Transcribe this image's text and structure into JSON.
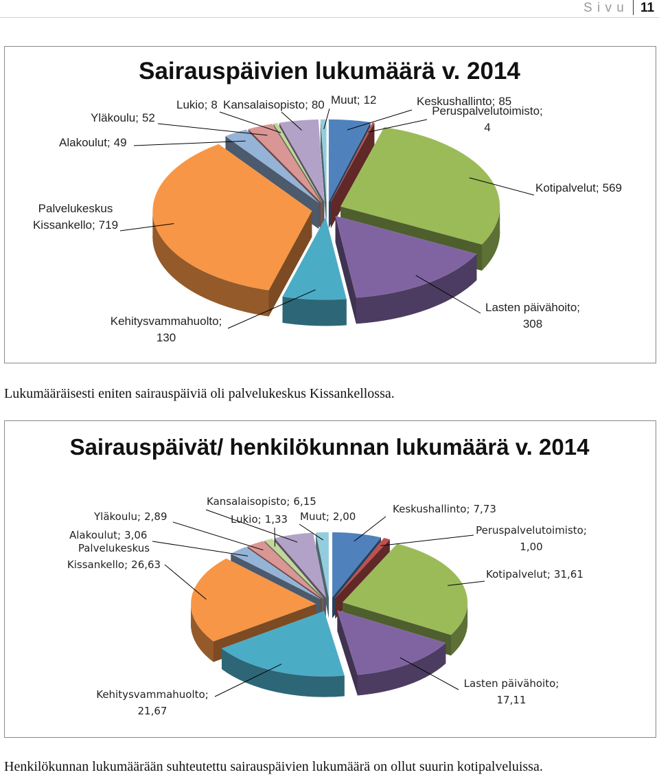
{
  "header": {
    "label": "S i v u",
    "page": "11"
  },
  "chart_data": [
    {
      "type": "pie",
      "title": "Sairauspäivien lukumäärä v. 2014",
      "categories": [
        "Keskushallinto;",
        "Peruspalvelutoimisto;",
        "Kotipalvelut;",
        "Lasten päivähoito;",
        "Kehitysvammahuolto;",
        "Palvelukeskus Kissankello;",
        "Alakoulut;",
        "Yläkoulu;",
        "Lukio;",
        "Kansalaisopisto;",
        "Muut;"
      ],
      "values": [
        85,
        4,
        569,
        308,
        130,
        719,
        49,
        52,
        8,
        80,
        12
      ],
      "colors": [
        "#4f81bd",
        "#c0504d",
        "#9bbb59",
        "#8064a2",
        "#4bacc6",
        "#f79646",
        "#95b3d7",
        "#d99694",
        "#c3d69b",
        "#b3a2c7",
        "#93cddd"
      ]
    },
    {
      "type": "pie",
      "title": "Sairauspäivät/ henkilökunnan lukumäärä v. 2014",
      "categories": [
        "Keskushallinto;",
        "Peruspalvelutoimisto;",
        "Kotipalvelut;",
        "Lasten päivähoito;",
        "Kehitysvammahuolto;",
        "Palvelukeskus Kissankello;",
        "Alakoulut;",
        "Yläkoulu;",
        "Lukio;",
        "Kansalaisopisto;",
        "Muut;"
      ],
      "values": [
        7.73,
        1.0,
        31.61,
        17.11,
        21.67,
        26.63,
        3.06,
        2.89,
        1.33,
        6.15,
        2.0
      ],
      "value_labels": [
        "7,73",
        "1,00",
        "31,61",
        "17,11",
        "21,67",
        "26,63",
        "3,06",
        "2,89",
        "1,33",
        "6,15",
        "2,00"
      ],
      "colors": [
        "#4f81bd",
        "#c0504d",
        "#9bbb59",
        "#8064a2",
        "#4bacc6",
        "#f79646",
        "#95b3d7",
        "#d99694",
        "#c3d69b",
        "#b3a2c7",
        "#93cddd"
      ]
    }
  ],
  "captions": [
    "Lukumääräisesti eniten sairauspäiviä oli palvelukeskus Kissankellossa.",
    "Henkilökunnan lukumäärään suhteutettu sairauspäivien lukumäärä on ollut suurin kotipalveluissa."
  ]
}
